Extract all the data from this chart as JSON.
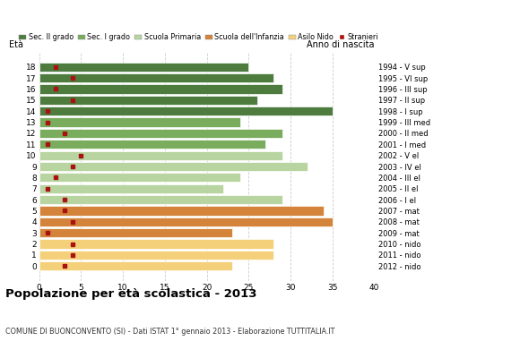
{
  "ages": [
    18,
    17,
    16,
    15,
    14,
    13,
    12,
    11,
    10,
    9,
    8,
    7,
    6,
    5,
    4,
    3,
    2,
    1,
    0
  ],
  "bar_values": [
    25,
    28,
    29,
    26,
    35,
    24,
    29,
    27,
    29,
    32,
    24,
    22,
    29,
    34,
    35,
    23,
    28,
    28,
    23
  ],
  "stranieri": [
    2,
    4,
    2,
    4,
    1,
    1,
    3,
    1,
    5,
    4,
    2,
    1,
    3,
    3,
    4,
    1,
    4,
    4,
    3
  ],
  "bar_colors": [
    "#4e7c3f",
    "#4e7c3f",
    "#4e7c3f",
    "#4e7c3f",
    "#4e7c3f",
    "#7aac5e",
    "#7aac5e",
    "#7aac5e",
    "#b8d4a0",
    "#b8d4a0",
    "#b8d4a0",
    "#b8d4a0",
    "#b8d4a0",
    "#d4843a",
    "#d4843a",
    "#d4843a",
    "#f5d07a",
    "#f5d07a",
    "#f5d07a"
  ],
  "right_labels": [
    "1994 - V sup",
    "1995 - VI sup",
    "1996 - III sup",
    "1997 - II sup",
    "1998 - I sup",
    "1999 - III med",
    "2000 - II med",
    "2001 - I med",
    "2002 - V el",
    "2003 - IV el",
    "2004 - III el",
    "2005 - II el",
    "2006 - I el",
    "2007 - mat",
    "2008 - mat",
    "2009 - mat",
    "2010 - nido",
    "2011 - nido",
    "2012 - nido"
  ],
  "legend_labels": [
    "Sec. II grado",
    "Sec. I grado",
    "Scuola Primaria",
    "Scuola dell'Infanzia",
    "Asilo Nido",
    "Stranieri"
  ],
  "legend_colors": [
    "#4e7c3f",
    "#7aac5e",
    "#b8d4a0",
    "#d4843a",
    "#f5d07a",
    "#aa1111"
  ],
  "title": "Popolazione per età scolastica - 2013",
  "subtitle": "COMUNE DI BUONCONVENTO (SI) - Dati ISTAT 1° gennaio 2013 - Elaborazione TUTTITALIA.IT",
  "xlabel_left": "Età",
  "xlabel_right": "Anno di nascita",
  "xlim": [
    0,
    40
  ],
  "xticks": [
    0,
    5,
    10,
    15,
    20,
    25,
    30,
    35,
    40
  ],
  "background_color": "#ffffff",
  "bar_edgecolor": "#ffffff",
  "stranieri_color": "#aa1111",
  "grid_color": "#cccccc"
}
